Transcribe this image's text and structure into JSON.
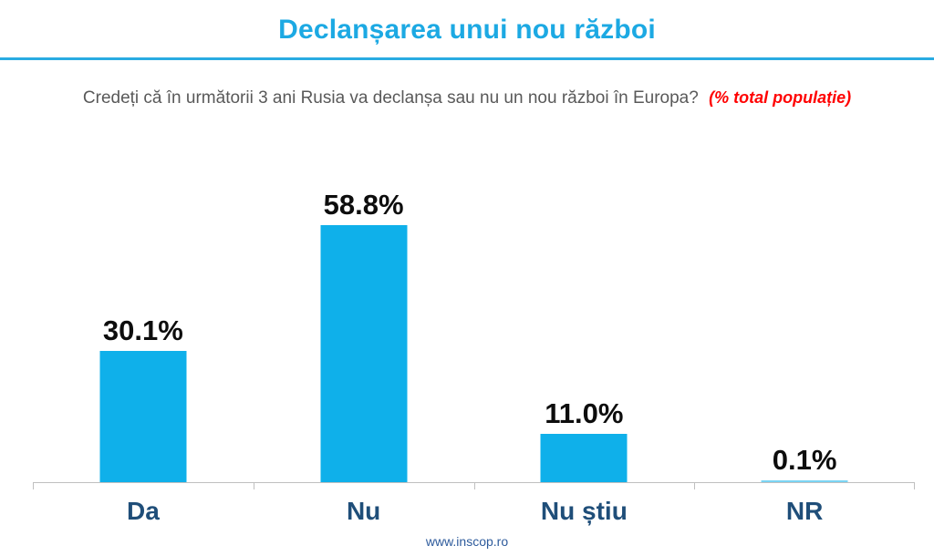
{
  "page": {
    "title": "Declanșarea unui nou război",
    "subtitle": "Credeți că în următorii 3 ani Rusia va declanșa sau nu un nou război în Europa?",
    "subtitle_note": "(% total populație)"
  },
  "chart_data": {
    "type": "bar",
    "title": "Declanșarea unui nou război",
    "categories": [
      "Da",
      "Nu",
      "Nu știu",
      "NR"
    ],
    "values": [
      30.1,
      58.8,
      11.0,
      0.1
    ],
    "value_labels": [
      "30.1%",
      "58.8%",
      "11.0%",
      "0.1%"
    ],
    "xlabel": "",
    "ylabel": "",
    "ylim": [
      0,
      75
    ],
    "grid": false,
    "legend": "none",
    "data_label_position": "above-bar",
    "bar_color": "#0FB0EA",
    "axis_color": "#BFBFBF"
  },
  "footer": {
    "url": "www.inscop.ro"
  },
  "colors": {
    "title_accent": "#1CA9E3",
    "divider": "#29ABE2",
    "subtitle_text": "#595959",
    "subtitle_note": "#FF0000",
    "category_label": "#1F4E79",
    "value_label": "#0d0d0d",
    "background": "#ffffff"
  }
}
